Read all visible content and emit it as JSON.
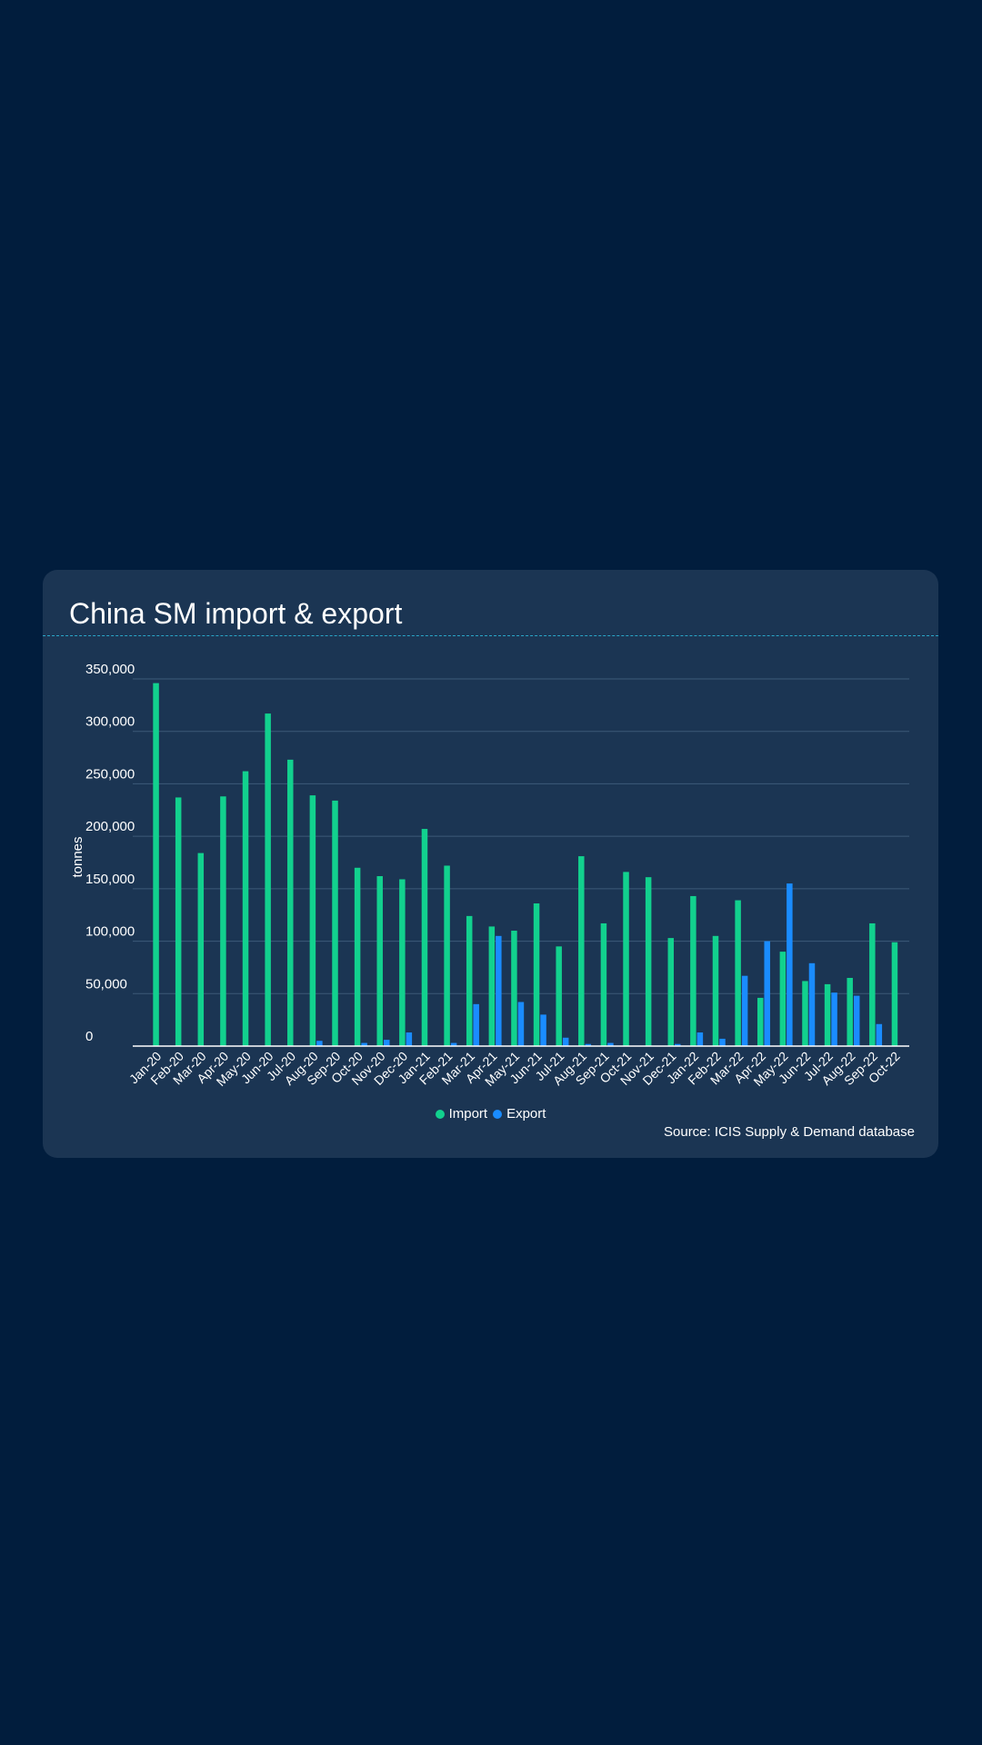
{
  "chart_data": {
    "type": "bar",
    "title": "China SM import & export",
    "ylabel": "tonnes",
    "xlabel": "",
    "ylim": [
      0,
      350000
    ],
    "yticks": [
      0,
      50000,
      100000,
      150000,
      200000,
      250000,
      300000,
      350000
    ],
    "ytick_labels": [
      "0",
      "50,000",
      "100,000",
      "150,000",
      "200,000",
      "250,000",
      "300,000",
      "350,000"
    ],
    "grid": true,
    "legend_position": "bottom-center",
    "categories": [
      "Jan-20",
      "Feb-20",
      "Mar-20",
      "Apr-20",
      "May-20",
      "Jun-20",
      "Jul-20",
      "Aug-20",
      "Sep-20",
      "Oct-20",
      "Nov-20",
      "Dec-20",
      "Jan-21",
      "Feb-21",
      "Mar-21",
      "Apr-21",
      "May-21",
      "Jun-21",
      "Jul-21",
      "Aug-21",
      "Sep-21",
      "Oct-21",
      "Nov-21",
      "Dec-21",
      "Jan-22",
      "Feb-22",
      "Mar-22",
      "Apr-22",
      "May-22",
      "Jun-22",
      "Jul-22",
      "Aug-22",
      "Sep-22",
      "Oct-22"
    ],
    "series": [
      {
        "name": "Import",
        "color": "#12d18e",
        "values": [
          346000,
          237000,
          184000,
          238000,
          262000,
          317000,
          273000,
          239000,
          234000,
          170000,
          162000,
          159000,
          207000,
          172000,
          124000,
          114000,
          110000,
          136000,
          95000,
          181000,
          117000,
          166000,
          161000,
          103000,
          143000,
          105000,
          139000,
          46000,
          90000,
          62000,
          59000,
          65000,
          117000,
          99000
        ]
      },
      {
        "name": "Export",
        "color": "#1a8cff",
        "values": [
          0,
          0,
          0,
          0,
          0,
          0,
          0,
          5000,
          0,
          3000,
          6000,
          13000,
          0,
          3000,
          40000,
          105000,
          42000,
          30000,
          8000,
          2000,
          3000,
          0,
          0,
          2000,
          13000,
          7000,
          67000,
          100000,
          155000,
          79000,
          51000,
          48000,
          21000,
          0
        ]
      }
    ]
  },
  "legend": {
    "import_label": "Import",
    "export_label": "Export",
    "import_color": "#12d18e",
    "export_color": "#1a8cff"
  },
  "footer": {
    "source": "Source: ICIS Supply & Demand database"
  }
}
